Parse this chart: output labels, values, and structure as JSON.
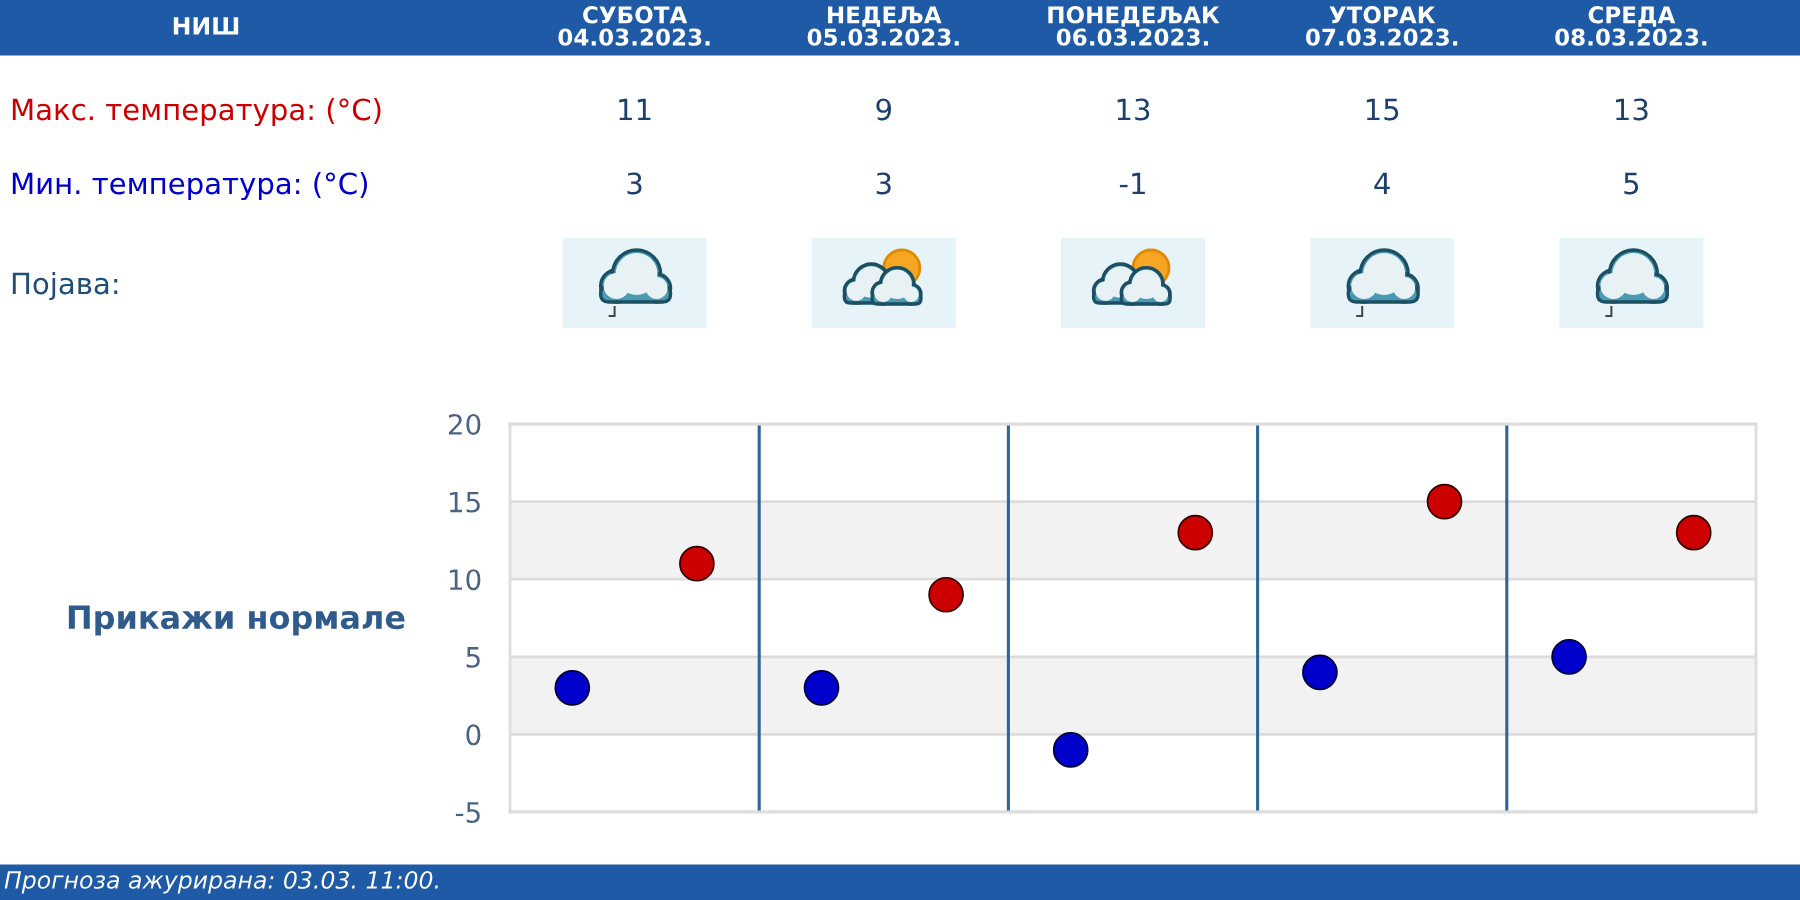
{
  "chart_data": {
    "type": "scatter",
    "title": "НИШ",
    "categories": [
      null,
      null,
      null,
      null,
      null
    ],
    "series": [
      {
        "name": "Макс. температура: (°C)",
        "color": "#cc0000",
        "values": [
          11,
          9,
          13,
          15,
          13
        ]
      },
      {
        "name": "Мин. температура: (°C)",
        "color": "#0000cc",
        "values": [
          3,
          3,
          -1,
          4,
          5
        ]
      }
    ],
    "ylim": [
      -5,
      20
    ],
    "yticks": [
      -5,
      0,
      5,
      10,
      15,
      20
    ],
    "grid": true,
    "marker": "circle",
    "data_labels": true,
    "bands": [
      {
        "axis": "y",
        "from": 10,
        "to": 15,
        "color": "#f2f2f2"
      },
      {
        "axis": "y",
        "from": 0,
        "to": 5,
        "color": "#f2f2f2"
      }
    ],
    "annotations": [
      "СУБОТА\n04.03.2023.",
      "НЕДЕЉА\n05.03.2023.",
      "ПОНЕДЕЉАК\n06.03.2023.",
      "УТОРАК\n07.03.2023.",
      "СРЕДА\n08.03.2023.",
      "Појава:",
      "Прикажи нормале",
      "Прогноза ажурирана: 03.03. 11:00."
    ]
  }
}
